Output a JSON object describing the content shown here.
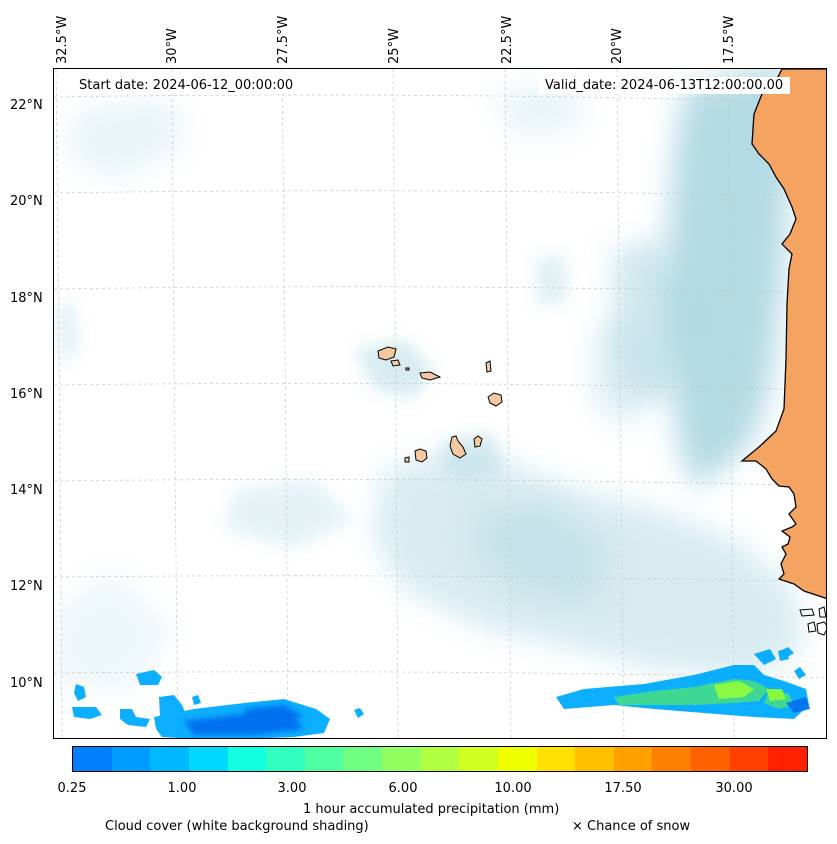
{
  "map": {
    "start_date": "Start date: 2024-06-12_00:00:00",
    "valid_date": "Valid_date: 2024-06-13T12:00:00.00",
    "lon_labels": [
      "32.5°W",
      "30°W",
      "27.5°W",
      "25°W",
      "22.5°W",
      "20°W",
      "17.5°W"
    ],
    "lat_labels": [
      "22°N",
      "20°N",
      "18°N",
      "16°N",
      "14°N",
      "12°N",
      "10°N"
    ],
    "colors": {
      "land": "#f4a460",
      "islands": "#f5c8a0",
      "cloud": "#a8d4e0",
      "coast": "#000000",
      "grid": "#c8c8c8"
    }
  },
  "colorbar": {
    "colors": [
      "#0080ff",
      "#009cff",
      "#00b8ff",
      "#00d8ff",
      "#10ffe0",
      "#30ffc0",
      "#50ffa0",
      "#70ff80",
      "#90ff60",
      "#b0ff40",
      "#d0ff20",
      "#f0ff00",
      "#ffe000",
      "#ffc000",
      "#ffa000",
      "#ff8000",
      "#ff6000",
      "#ff4000",
      "#ff2000"
    ],
    "ticks": [
      "0.25",
      "1.00",
      "3.00",
      "6.00",
      "10.00",
      "17.50",
      "30.00"
    ],
    "label": "1 hour accumulated precipitation (mm)"
  },
  "legend": {
    "cloud_cover": "Cloud cover (white background shading)",
    "snow": "× Chance of snow"
  }
}
